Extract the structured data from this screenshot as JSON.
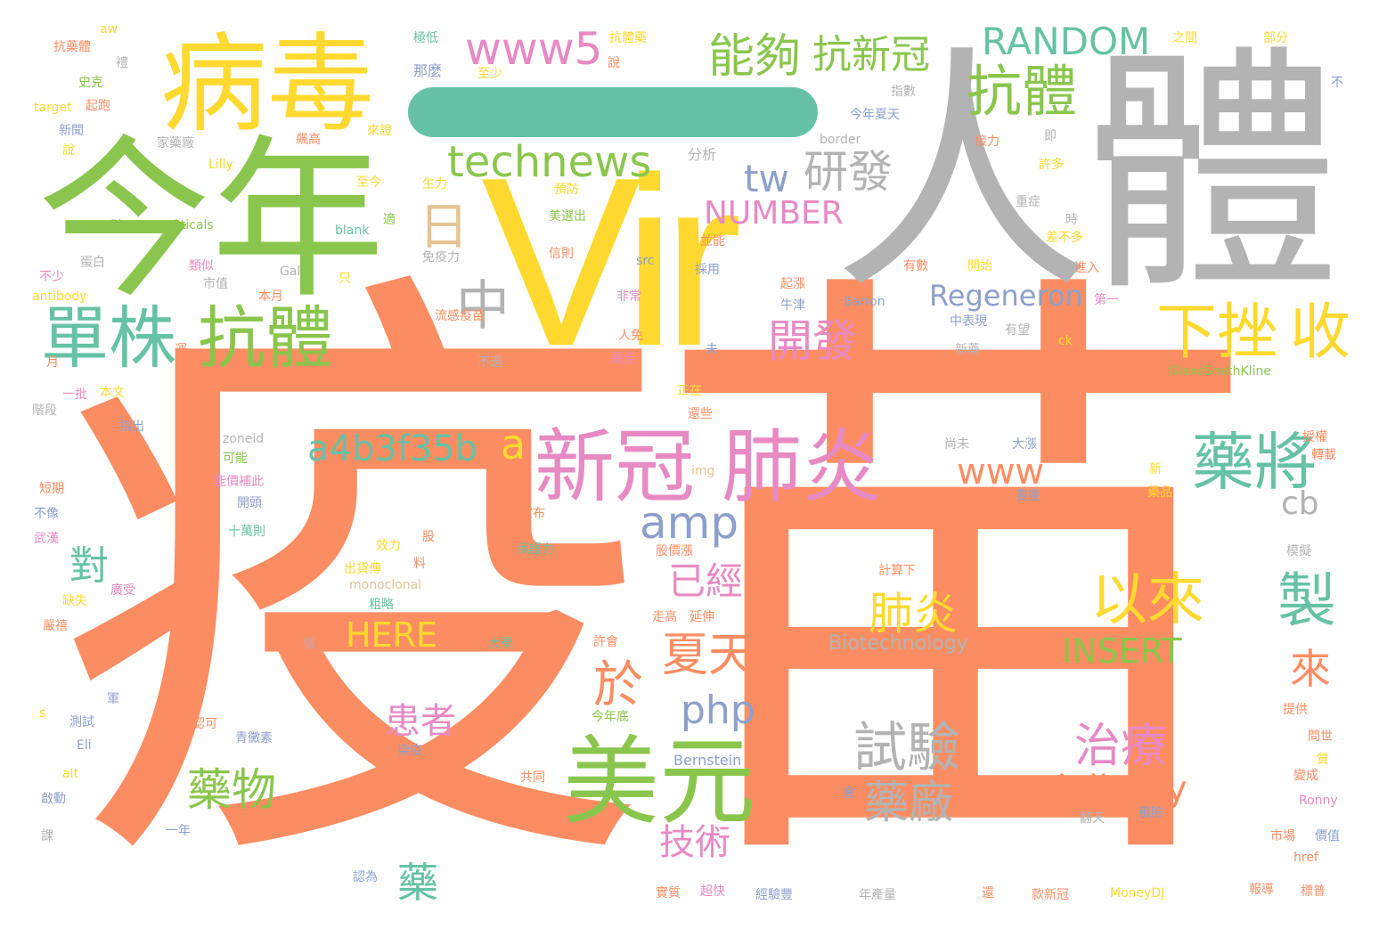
{
  "palette": {
    "orange": "#fc8d62",
    "green": "#8ac64d",
    "yellow": "#ffd92f",
    "gray": "#b3b3b3",
    "blue": "#8da0cb",
    "pink": "#e78ac3",
    "teal": "#66c2a5",
    "tan": "#e5c494"
  },
  "words": [
    {
      "text": "疫苗",
      "color": "#fc8d62"
    },
    {
      "text": "人體",
      "color": "#b3b3b3"
    },
    {
      "text": "Vir",
      "color": "#ffd92f"
    },
    {
      "text": "今年",
      "color": "#8ac64d"
    },
    {
      "text": "病毒",
      "color": "#ffd92f"
    },
    {
      "text": "美元",
      "color": "#8ac64d"
    },
    {
      "text": "新冠",
      "color": "#e78ac3"
    },
    {
      "text": "肺炎",
      "color": "#e78ac3"
    },
    {
      "text": "抗體",
      "color": "#8ac64d"
    },
    {
      "text": "單株",
      "color": "#66c2a5"
    },
    {
      "text": "technews",
      "color": "#8ac64d"
    },
    {
      "text": "www5",
      "color": "#e78ac3"
    },
    {
      "text": "抗體",
      "color": "#8ac64d"
    },
    {
      "text": "RANDOM",
      "color": "#66c2a5"
    },
    {
      "text": "能夠",
      "color": "#8ac64d"
    },
    {
      "text": "抗新冠",
      "color": "#8ac64d"
    },
    {
      "text": "下挫",
      "color": "#ffd92f"
    },
    {
      "text": "收",
      "color": "#ffd92f"
    },
    {
      "text": "藥將",
      "color": "#66c2a5"
    },
    {
      "text": "a4b3f35b",
      "color": "#66c2a5"
    },
    {
      "text": "amp",
      "color": "#8da0cb"
    },
    {
      "text": "以來",
      "color": "#ffd92f"
    },
    {
      "text": "試驗",
      "color": "#b3b3b3"
    },
    {
      "text": "治療",
      "color": "#e78ac3"
    },
    {
      "text": "delivery",
      "color": "#fc8d62"
    },
    {
      "text": "藥廠",
      "color": "#b3b3b3"
    },
    {
      "text": "肺炎",
      "color": "#ffd92f"
    },
    {
      "text": "INSERT",
      "color": "#8ac64d"
    },
    {
      "text": "HERE",
      "color": "#ffd92f"
    },
    {
      "text": "製",
      "color": "#66c2a5"
    },
    {
      "text": "NUMBER",
      "color": "#e78ac3"
    },
    {
      "text": "研發",
      "color": "#b3b3b3"
    },
    {
      "text": "tw",
      "color": "#8da0cb"
    },
    {
      "text": "開發",
      "color": "#e78ac3"
    },
    {
      "text": "Regeneron",
      "color": "#8da0cb"
    },
    {
      "text": "www",
      "color": "#fc8d62"
    },
    {
      "text": "cb",
      "color": "#b3b3b3"
    },
    {
      "text": "已經",
      "color": "#e78ac3"
    },
    {
      "text": "夏天",
      "color": "#fc8d62"
    },
    {
      "text": "php",
      "color": "#8da0cb"
    },
    {
      "text": "於",
      "color": "#fc8d62"
    },
    {
      "text": "患者",
      "color": "#e78ac3"
    },
    {
      "text": "藥物",
      "color": "#8ac64d"
    },
    {
      "text": "技術",
      "color": "#e78ac3"
    },
    {
      "text": "對",
      "color": "#66c2a5"
    },
    {
      "text": "來",
      "color": "#fc8d62"
    },
    {
      "text": "藥",
      "color": "#66c2a5"
    },
    {
      "text": "n",
      "color": "#fc8d62"
    },
    {
      "text": "中",
      "color": "#b3b3b3"
    },
    {
      "text": "日",
      "color": "#e5c494"
    },
    {
      "text": "a",
      "color": "#ffd92f"
    },
    {
      "text": "Biotechnology",
      "color": "#b3b3b3"
    },
    {
      "text": "Bernstein",
      "color": "#8da0cb"
    },
    {
      "text": "GlaxoSmithKline",
      "color": "#8ac64d"
    },
    {
      "text": "Barron",
      "color": "#8da0cb"
    },
    {
      "text": "Pharmaceuticals",
      "color": "#8ac64d"
    },
    {
      "text": "MoneyDJ",
      "color": "#ffd92f"
    },
    {
      "text": "monoclonal",
      "color": "#e5c494"
    },
    {
      "text": "antibody",
      "color": "#ffd92f"
    },
    {
      "text": "target",
      "color": "#ffd92f"
    },
    {
      "text": "border",
      "color": "#b3b3b3"
    },
    {
      "text": "zoneid",
      "color": "#b3b3b3"
    },
    {
      "text": "blank",
      "color": "#66c2a5"
    },
    {
      "text": "Lilly",
      "color": "#ffd92f"
    },
    {
      "text": "Gal",
      "color": "#b3b3b3"
    },
    {
      "text": "src",
      "color": "#8da0cb"
    },
    {
      "text": "href",
      "color": "#fc8d62"
    },
    {
      "text": "Ronny",
      "color": "#e78ac3"
    },
    {
      "text": "alt",
      "color": "#ffd92f"
    },
    {
      "text": "img",
      "color": "#e5c494"
    },
    {
      "text": "ck",
      "color": "#ffd92f"
    },
    {
      "text": "Eli",
      "color": "#8da0cb"
    },
    {
      "text": "aw",
      "color": "#ffd92f"
    },
    {
      "text": "s",
      "color": "#ffd92f"
    },
    {
      "text": "抗藥體",
      "color": "#fc8d62"
    },
    {
      "text": "極低",
      "color": "#66c2a5"
    },
    {
      "text": "抗體藥",
      "color": "#ffd92f"
    },
    {
      "text": "那麼",
      "color": "#8da0cb"
    },
    {
      "text": "至少",
      "color": "#ffd92f"
    },
    {
      "text": "史克",
      "color": "#8ac64d"
    },
    {
      "text": "起跑",
      "color": "#fc8d62"
    },
    {
      "text": "新聞",
      "color": "#8da0cb"
    },
    {
      "text": "家藥廠",
      "color": "#b3b3b3"
    },
    {
      "text": "飆高",
      "color": "#fc8d62"
    },
    {
      "text": "來證",
      "color": "#ffd92f"
    },
    {
      "text": "分析",
      "color": "#b3b3b3"
    },
    {
      "text": "至今",
      "color": "#ffd92f"
    },
    {
      "text": "生力",
      "color": "#ffd92f"
    },
    {
      "text": "預防",
      "color": "#ffd92f"
    },
    {
      "text": "美選出",
      "color": "#8ac64d"
    },
    {
      "text": "免疫力",
      "color": "#b3b3b3"
    },
    {
      "text": "信則",
      "color": "#fc8d62"
    },
    {
      "text": "蛋白",
      "color": "#b3b3b3"
    },
    {
      "text": "類似",
      "color": "#e78ac3"
    },
    {
      "text": "市值",
      "color": "#b3b3b3"
    },
    {
      "text": "本月",
      "color": "#fc8d62"
    },
    {
      "text": "只",
      "color": "#ffd92f"
    },
    {
      "text": "春天",
      "color": "#fc8d62"
    },
    {
      "text": "非常",
      "color": "#e78ac3"
    },
    {
      "text": "不少",
      "color": "#e78ac3"
    },
    {
      "text": "月",
      "color": "#fc8d62"
    },
    {
      "text": "運",
      "color": "#fc8d62"
    },
    {
      "text": "流感疫苗",
      "color": "#fc8d62"
    },
    {
      "text": "不過",
      "color": "#b3b3b3"
    },
    {
      "text": "人免",
      "color": "#fc8d62"
    },
    {
      "text": "最佳",
      "color": "#e78ac3"
    },
    {
      "text": "一批",
      "color": "#e78ac3"
    },
    {
      "text": "本文",
      "color": "#ffd92f"
    },
    {
      "text": "階段",
      "color": "#b3b3b3"
    },
    {
      "text": "指出",
      "color": "#8da0cb"
    },
    {
      "text": "可能",
      "color": "#8ac64d"
    },
    {
      "text": "能價補此",
      "color": "#e78ac3"
    },
    {
      "text": "開頭",
      "color": "#8da0cb"
    },
    {
      "text": "短期",
      "color": "#fc8d62"
    },
    {
      "text": "不像",
      "color": "#8da0cb"
    },
    {
      "text": "十萬則",
      "color": "#66c2a5"
    },
    {
      "text": "武漢",
      "color": "#e78ac3"
    },
    {
      "text": "缺失",
      "color": "#ffd92f"
    },
    {
      "text": "廣受",
      "color": "#e78ac3"
    },
    {
      "text": "嚴禧",
      "color": "#fc8d62"
    },
    {
      "text": "粗略",
      "color": "#66c2a5"
    },
    {
      "text": "出貨傳",
      "color": "#ffd92f"
    },
    {
      "text": "效力",
      "color": "#ffd92f"
    },
    {
      "text": "股",
      "color": "#fc8d62"
    },
    {
      "text": "料",
      "color": "#fc8d62"
    },
    {
      "text": "宣布",
      "color": "#fc8d62"
    },
    {
      "text": "保護力",
      "color": "#66c2a5"
    },
    {
      "text": "股價漲",
      "color": "#fc8d62"
    },
    {
      "text": "走高",
      "color": "#fc8d62"
    },
    {
      "text": "延伸",
      "color": "#fc8d62"
    },
    {
      "text": "大學",
      "color": "#66c2a5"
    },
    {
      "text": "許會",
      "color": "#fc8d62"
    },
    {
      "text": "信",
      "color": "#b3b3b3"
    },
    {
      "text": "軍",
      "color": "#8da0cb"
    },
    {
      "text": "認可",
      "color": "#fc8d62"
    },
    {
      "text": "測試",
      "color": "#8da0cb"
    },
    {
      "text": "今年底",
      "color": "#8ac64d"
    },
    {
      "text": "青黴素",
      "color": "#8da0cb"
    },
    {
      "text": "染疫",
      "color": "#8da0cb"
    },
    {
      "text": "啟動",
      "color": "#8da0cb"
    },
    {
      "text": "共同",
      "color": "#fc8d62"
    },
    {
      "text": "自圖",
      "color": "#fc8d62"
    },
    {
      "text": "將達",
      "color": "#fc8d62"
    },
    {
      "text": "一年",
      "color": "#8da0cb"
    },
    {
      "text": "課",
      "color": "#b3b3b3"
    },
    {
      "text": "認為",
      "color": "#8da0cb"
    },
    {
      "text": "實質",
      "color": "#fc8d62"
    },
    {
      "text": "超快",
      "color": "#e78ac3"
    },
    {
      "text": "經驗豐",
      "color": "#8da0cb"
    },
    {
      "text": "年產量",
      "color": "#b3b3b3"
    },
    {
      "text": "還",
      "color": "#fc8d62"
    },
    {
      "text": "款新冠",
      "color": "#fc8d62"
    },
    {
      "text": "報導",
      "color": "#fc8d62"
    },
    {
      "text": "標普",
      "color": "#fc8d62"
    },
    {
      "text": "市場",
      "color": "#fc8d62"
    },
    {
      "text": "價值",
      "color": "#8da0cb"
    },
    {
      "text": "風險",
      "color": "#8da0cb"
    },
    {
      "text": "翻天",
      "color": "#b3b3b3"
    },
    {
      "text": "會",
      "color": "#8da0cb"
    },
    {
      "text": "計算下",
      "color": "#fc8d62"
    },
    {
      "text": "模擬",
      "color": "#b3b3b3"
    },
    {
      "text": "提供",
      "color": "#fc8d62"
    },
    {
      "text": "問世",
      "color": "#fc8d62"
    },
    {
      "text": "質",
      "color": "#ffd92f"
    },
    {
      "text": "變成",
      "color": "#fc8d62"
    },
    {
      "text": "授權",
      "color": "#fc8d62"
    },
    {
      "text": "轉載",
      "color": "#fc8d62"
    },
    {
      "text": "新",
      "color": "#ffd92f"
    },
    {
      "text": "藥品",
      "color": "#ffd92f"
    },
    {
      "text": "要靈",
      "color": "#8da0cb"
    },
    {
      "text": "尚未",
      "color": "#b3b3b3"
    },
    {
      "text": "大漲",
      "color": "#8da0cb"
    },
    {
      "text": "正在",
      "color": "#ffd92f"
    },
    {
      "text": "還些",
      "color": "#fc8d62"
    },
    {
      "text": "美國藥",
      "color": "#fc8d62"
    },
    {
      "text": "新藥",
      "color": "#b3b3b3"
    },
    {
      "text": "有望",
      "color": "#b3b3b3"
    },
    {
      "text": "中表現",
      "color": "#8da0cb"
    },
    {
      "text": "牛津",
      "color": "#8da0cb"
    },
    {
      "text": "起漲",
      "color": "#fc8d62"
    },
    {
      "text": "第一",
      "color": "#e78ac3"
    },
    {
      "text": "有數",
      "color": "#fc8d62"
    },
    {
      "text": "開始",
      "color": "#ffd92f"
    },
    {
      "text": "進入",
      "color": "#fc8d62"
    },
    {
      "text": "差不多",
      "color": "#ffd92f"
    },
    {
      "text": "時",
      "color": "#b3b3b3"
    },
    {
      "text": "重症",
      "color": "#b3b3b3"
    },
    {
      "text": "許多",
      "color": "#ffd92f"
    },
    {
      "text": "接力",
      "color": "#fc8d62"
    },
    {
      "text": "即",
      "color": "#b3b3b3"
    },
    {
      "text": "指數",
      "color": "#b3b3b3"
    },
    {
      "text": "今年夏天",
      "color": "#8da0cb"
    },
    {
      "text": "之間",
      "color": "#ffd92f"
    },
    {
      "text": "部分",
      "color": "#ffd92f"
    },
    {
      "text": "不",
      "color": "#8da0cb"
    },
    {
      "text": "並能",
      "color": "#fc8d62"
    },
    {
      "text": "採用",
      "color": "#8da0cb"
    },
    {
      "text": "未",
      "color": "#8da0cb"
    },
    {
      "text": "適",
      "color": "#8ac64d"
    },
    {
      "text": "禮",
      "color": "#b3b3b3"
    },
    {
      "text": "說",
      "color": "#ffd92f"
    },
    {
      "text": "說",
      "color": "#fc8d62"
    }
  ]
}
